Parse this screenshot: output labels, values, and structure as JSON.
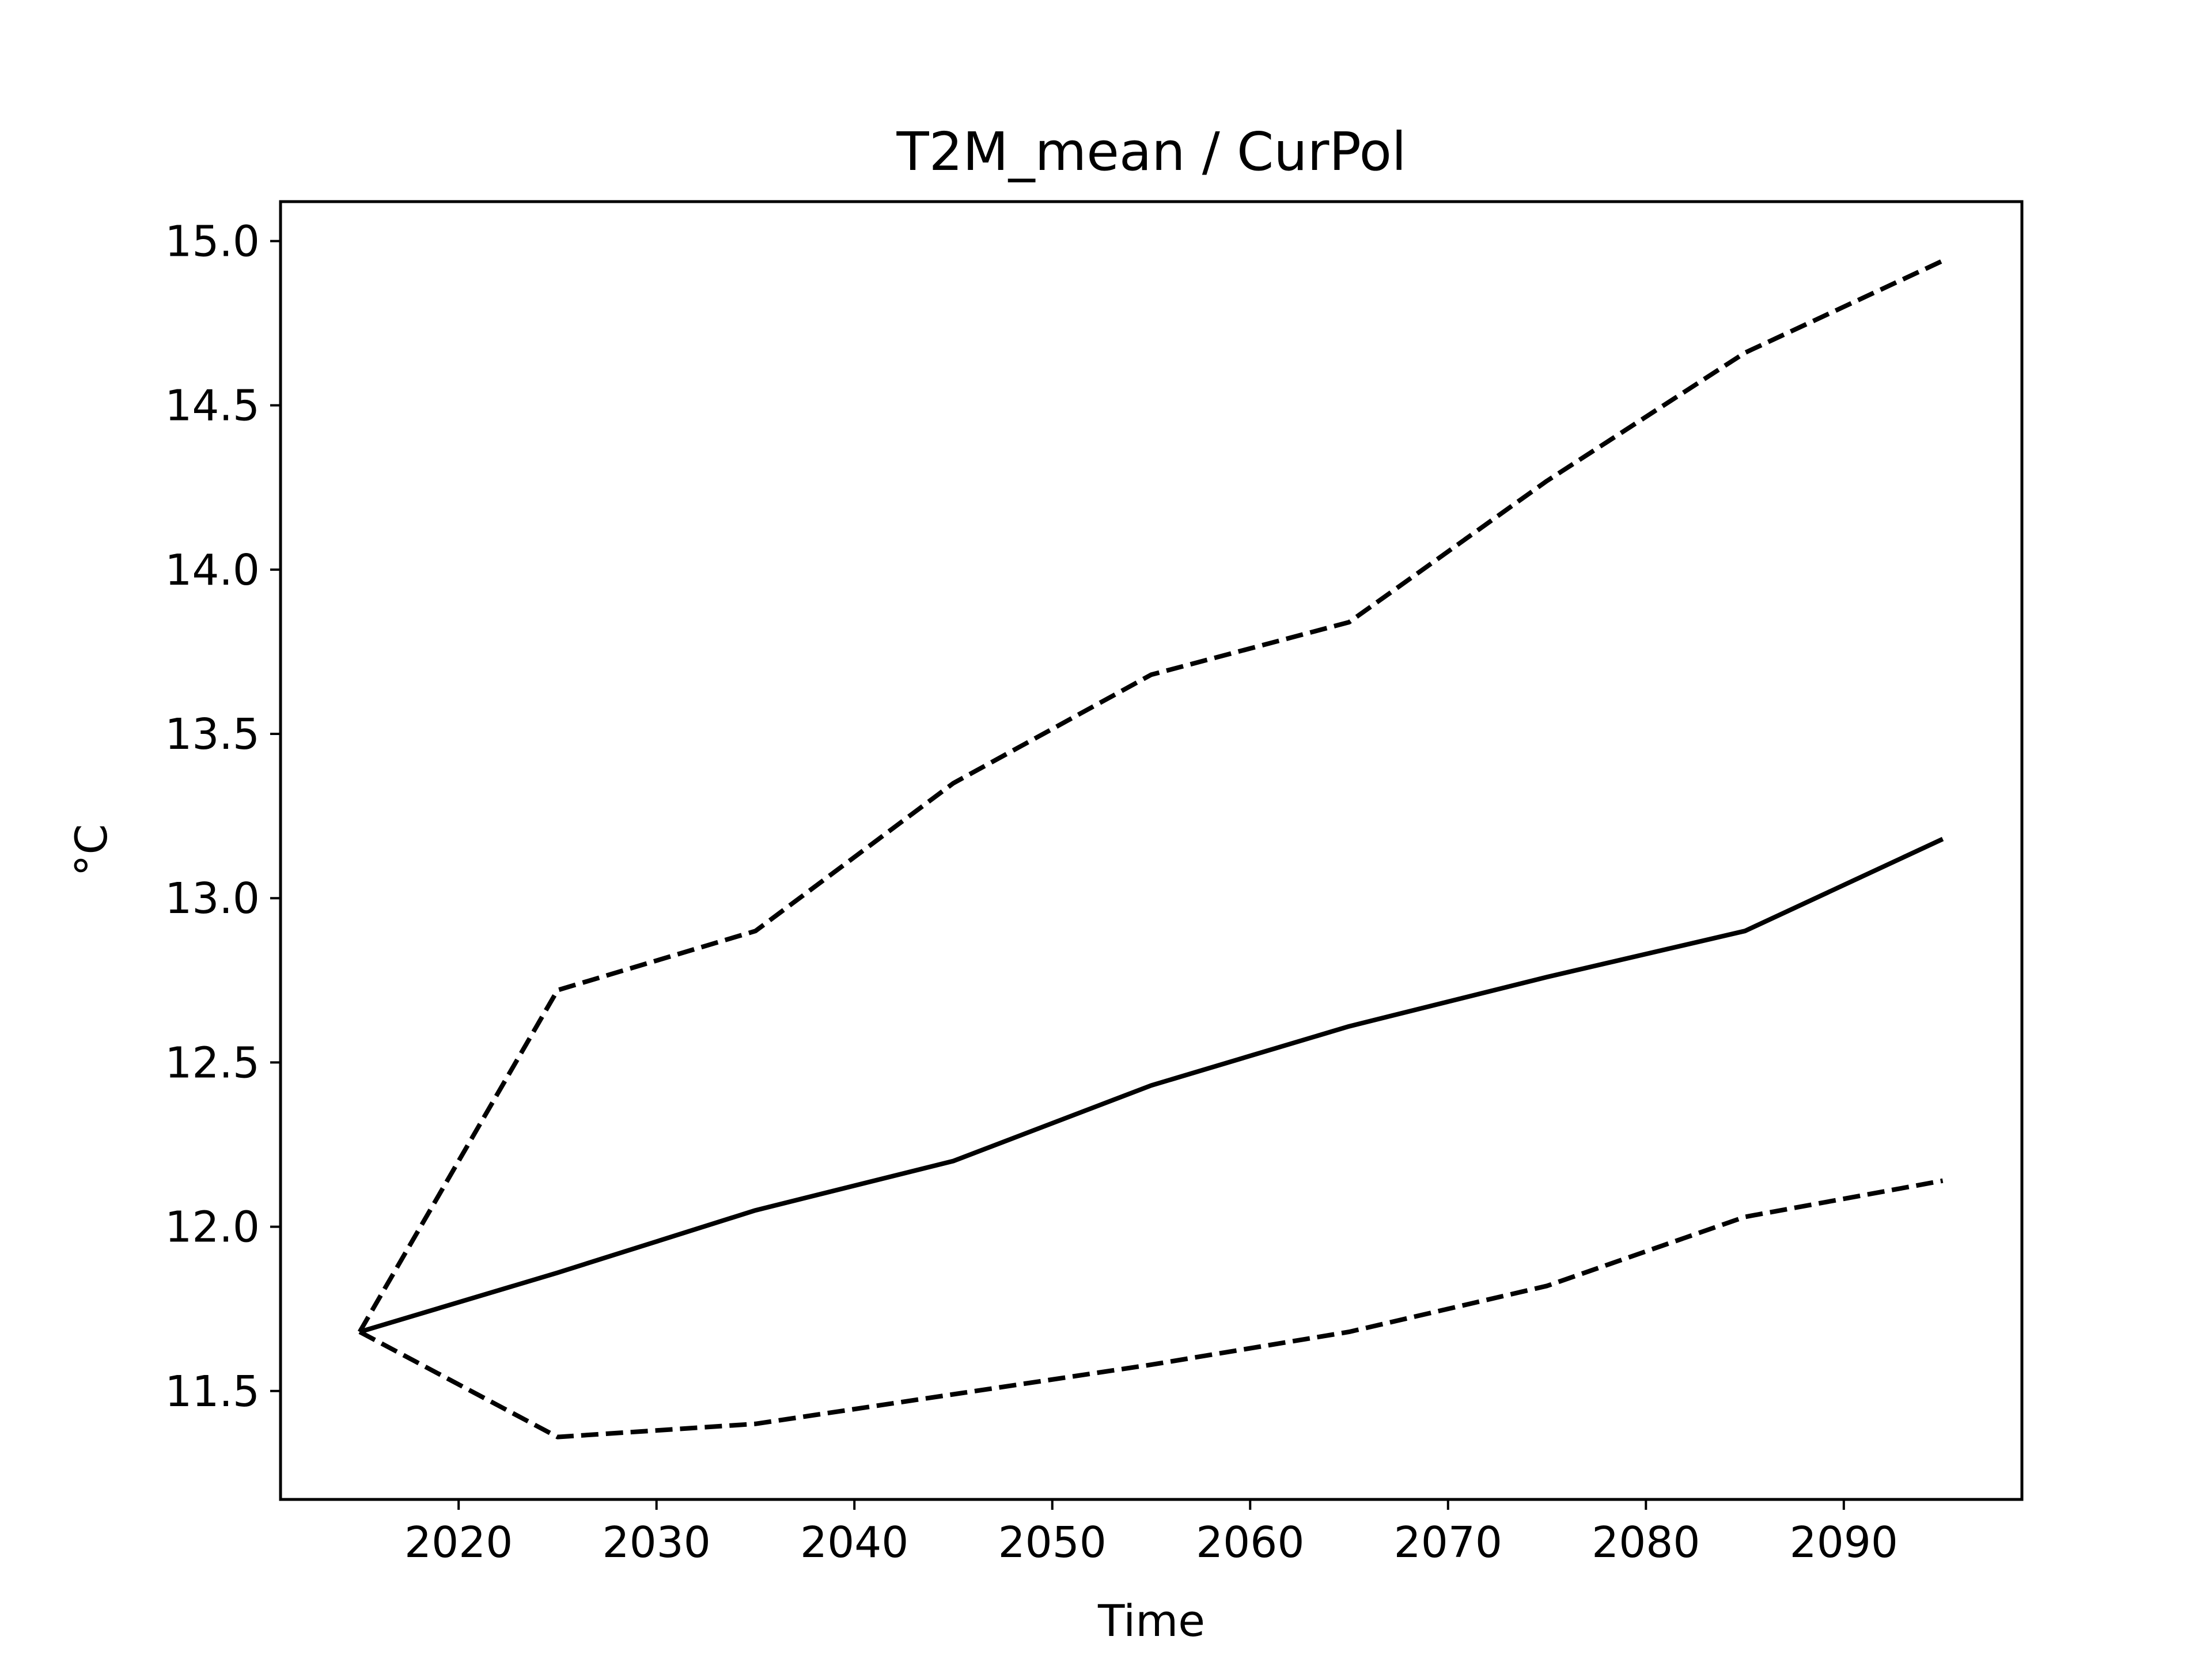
{
  "chart_data": {
    "type": "line",
    "title": "T2M_mean / CurPol",
    "xlabel": "Time",
    "ylabel": "°C",
    "xlim": [
      2011,
      2099
    ],
    "ylim": [
      11.17,
      15.12
    ],
    "xticks": [
      2020,
      2030,
      2040,
      2050,
      2060,
      2070,
      2080,
      2090
    ],
    "xtick_labels": [
      "2020",
      "2030",
      "2040",
      "2050",
      "2060",
      "2070",
      "2080",
      "2090"
    ],
    "yticks": [
      11.5,
      12.0,
      12.5,
      13.0,
      13.5,
      14.0,
      14.5,
      15.0
    ],
    "ytick_labels": [
      "11.5",
      "12.0",
      "12.5",
      "13.0",
      "13.5",
      "14.0",
      "14.5",
      "15.0"
    ],
    "x": [
      2015,
      2025,
      2035,
      2045,
      2055,
      2065,
      2075,
      2085,
      2095
    ],
    "series": [
      {
        "style": "solid",
        "color": "#000000",
        "values": [
          11.68,
          11.86,
          12.05,
          12.2,
          12.43,
          12.61,
          12.76,
          12.9,
          13.18
        ]
      },
      {
        "style": "dashed",
        "color": "#000000",
        "values": [
          11.68,
          12.72,
          12.9,
          13.35,
          13.68,
          13.84,
          14.27,
          14.66,
          14.94
        ]
      },
      {
        "style": "dashed",
        "color": "#000000",
        "values": [
          11.68,
          11.36,
          11.4,
          11.49,
          11.58,
          11.68,
          11.82,
          12.03,
          12.14
        ]
      }
    ],
    "grid": false,
    "legend": "none"
  }
}
